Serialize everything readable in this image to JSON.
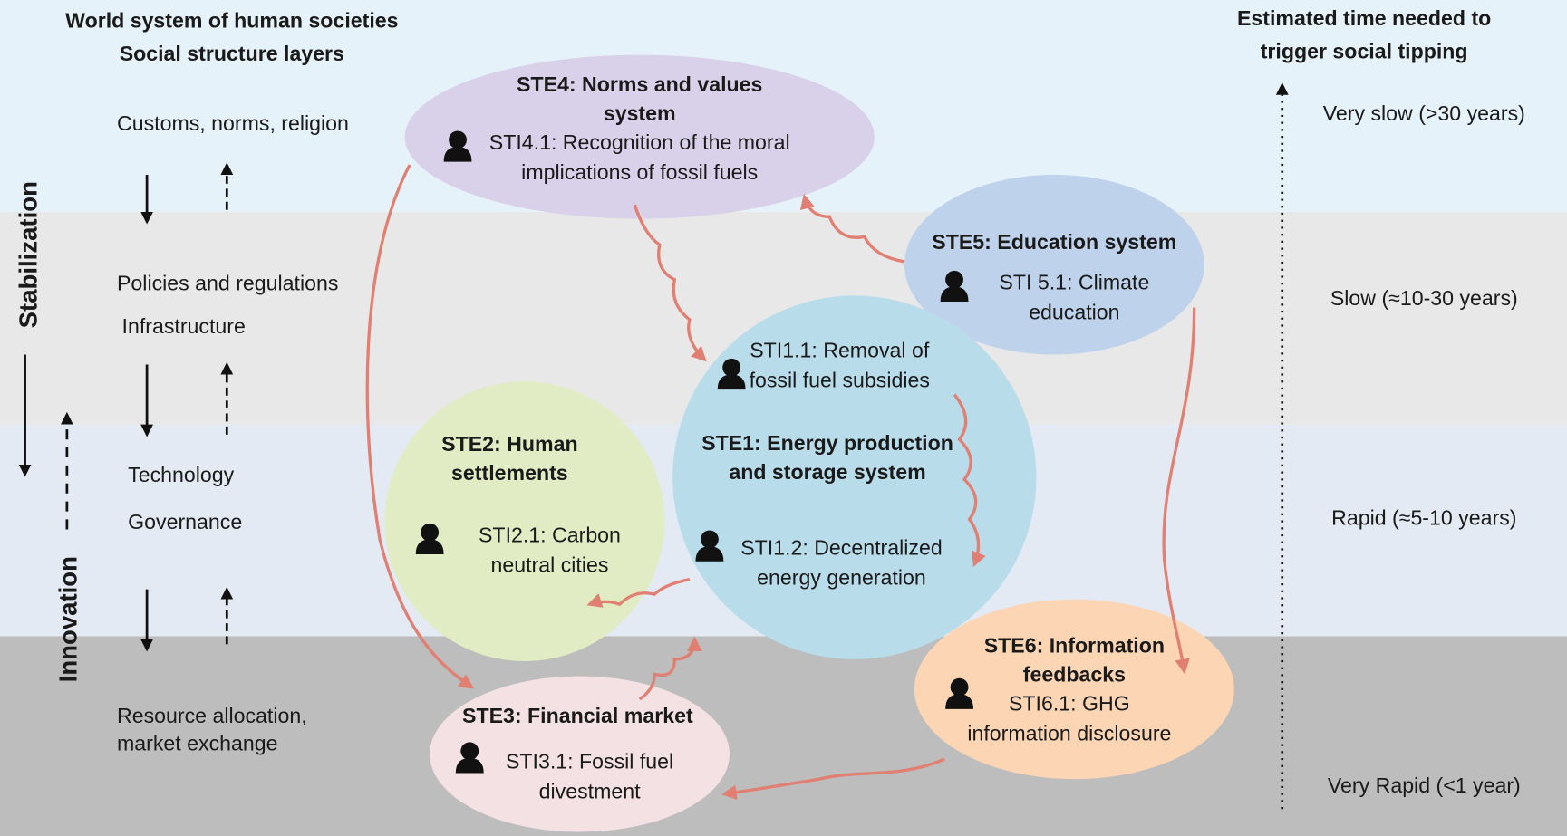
{
  "header": {
    "left_title": [
      "World system of human societies",
      "Social structure layers"
    ],
    "right_title": [
      "Estimated time needed to",
      "trigger social tipping"
    ]
  },
  "layers": [
    [
      "Customs, norms, religion"
    ],
    [
      "Policies and regulations",
      "Infrastructure"
    ],
    [
      "Technology",
      "Governance"
    ],
    [
      "Resource allocation,",
      "market exchange"
    ]
  ],
  "side_labels": [
    "Stabilization",
    "Innovation"
  ],
  "time_labels": [
    "Very slow (>30 years)",
    "Slow (≈10-30 years)",
    "Rapid (≈5-10 years)",
    "Very Rapid (<1 year)"
  ],
  "nodes": [
    {
      "title": [
        "STE4: Norms and values",
        "system"
      ],
      "intervention": [
        "STI4.1: Recognition of the moral",
        "implications of fossil fuels"
      ]
    },
    {
      "title": [
        "STE5: Education system"
      ],
      "intervention": [
        "STI 5.1: Climate",
        "education"
      ]
    },
    {
      "title": [
        "STE1: Energy production",
        "and storage system"
      ],
      "intervention": [
        "STI1.1: Removal of",
        "fossil fuel subsidies"
      ],
      "intervention2": [
        "STI1.2: Decentralized",
        "energy generation"
      ]
    },
    {
      "title": [
        "STE2: Human",
        "settlements"
      ],
      "intervention": [
        "STI2.1: Carbon",
        "neutral cities"
      ]
    },
    {
      "title": [
        "STE6: Information",
        "feedbacks"
      ],
      "intervention": [
        "STI6.1: GHG",
        "information disclosure"
      ]
    },
    {
      "title": [
        "STE3: Financial market"
      ],
      "intervention": [
        "STI3.1: Fossil fuel",
        "divestment"
      ]
    }
  ]
}
